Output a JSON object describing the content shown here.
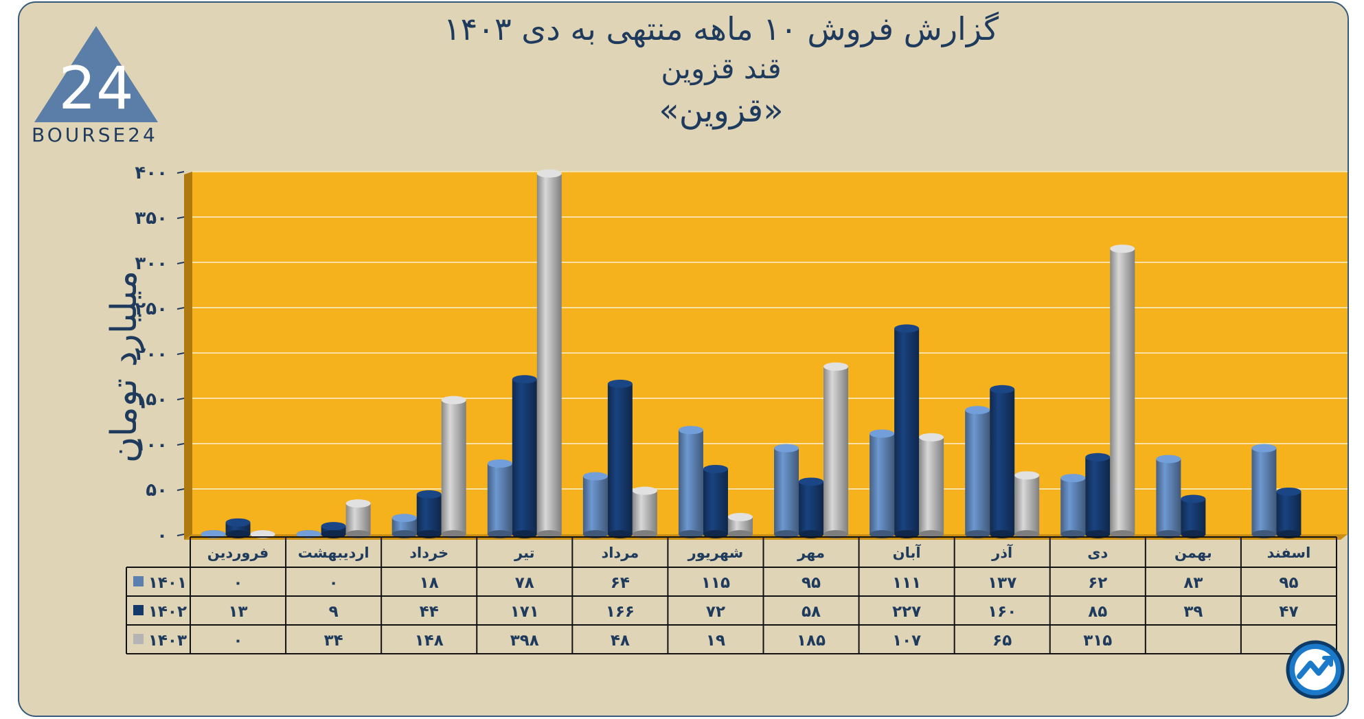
{
  "title": {
    "line1": "گزارش  فروش ۱۰ ماهه منتهی به دی ۱۴۰۳",
    "line2": "قند قزوین",
    "line3": "«قزوین»"
  },
  "logo": {
    "text": "BOURSE24",
    "mark": "24"
  },
  "icons": {
    "logo": "bourse24-triangle-logo",
    "corner": "trend-arrow-circle-icon"
  },
  "colors": {
    "plot_background": "#f6b21c",
    "page_background": "#e0d4b6",
    "series_1401": "#5b7fae",
    "series_1402": "#15386b",
    "series_1403": "#b4b4b4",
    "text": "#1e3a5c"
  },
  "chart_data": {
    "type": "bar",
    "ylabel": "میلیارد تومان",
    "ylim": [
      0,
      400
    ],
    "yticks": [
      "۰",
      "۵۰",
      "۱۰۰",
      "۱۵۰",
      "۲۰۰",
      "۲۵۰",
      "۳۰۰",
      "۳۵۰",
      "۴۰۰"
    ],
    "grid": true,
    "categories": [
      "فروردین",
      "اردیبهشت",
      "خرداد",
      "تیر",
      "مرداد",
      "شهریور",
      "مهر",
      "آبان",
      "آذر",
      "دی",
      "بهمن",
      "اسفند"
    ],
    "series": [
      {
        "name": "۱۴۰۱",
        "values": [
          0,
          0,
          18,
          78,
          64,
          115,
          95,
          111,
          137,
          62,
          83,
          95
        ],
        "labels": [
          "۰",
          "۰",
          "۱۸",
          "۷۸",
          "۶۴",
          "۱۱۵",
          "۹۵",
          "۱۱۱",
          "۱۳۷",
          "۶۲",
          "۸۳",
          "۹۵"
        ]
      },
      {
        "name": "۱۴۰۲",
        "values": [
          13,
          9,
          44,
          171,
          166,
          72,
          58,
          227,
          160,
          85,
          39,
          47
        ],
        "labels": [
          "۱۳",
          "۹",
          "۴۴",
          "۱۷۱",
          "۱۶۶",
          "۷۲",
          "۵۸",
          "۲۲۷",
          "۱۶۰",
          "۸۵",
          "۳۹",
          "۴۷"
        ]
      },
      {
        "name": "۱۴۰۳",
        "values": [
          0,
          34,
          148,
          398,
          48,
          19,
          185,
          107,
          65,
          315,
          null,
          null
        ],
        "labels": [
          "۰",
          "۳۴",
          "۱۴۸",
          "۳۹۸",
          "۴۸",
          "۱۹",
          "۱۸۵",
          "۱۰۷",
          "۶۵",
          "۳۱۵",
          "",
          ""
        ]
      }
    ],
    "legend": "data-table-left"
  }
}
